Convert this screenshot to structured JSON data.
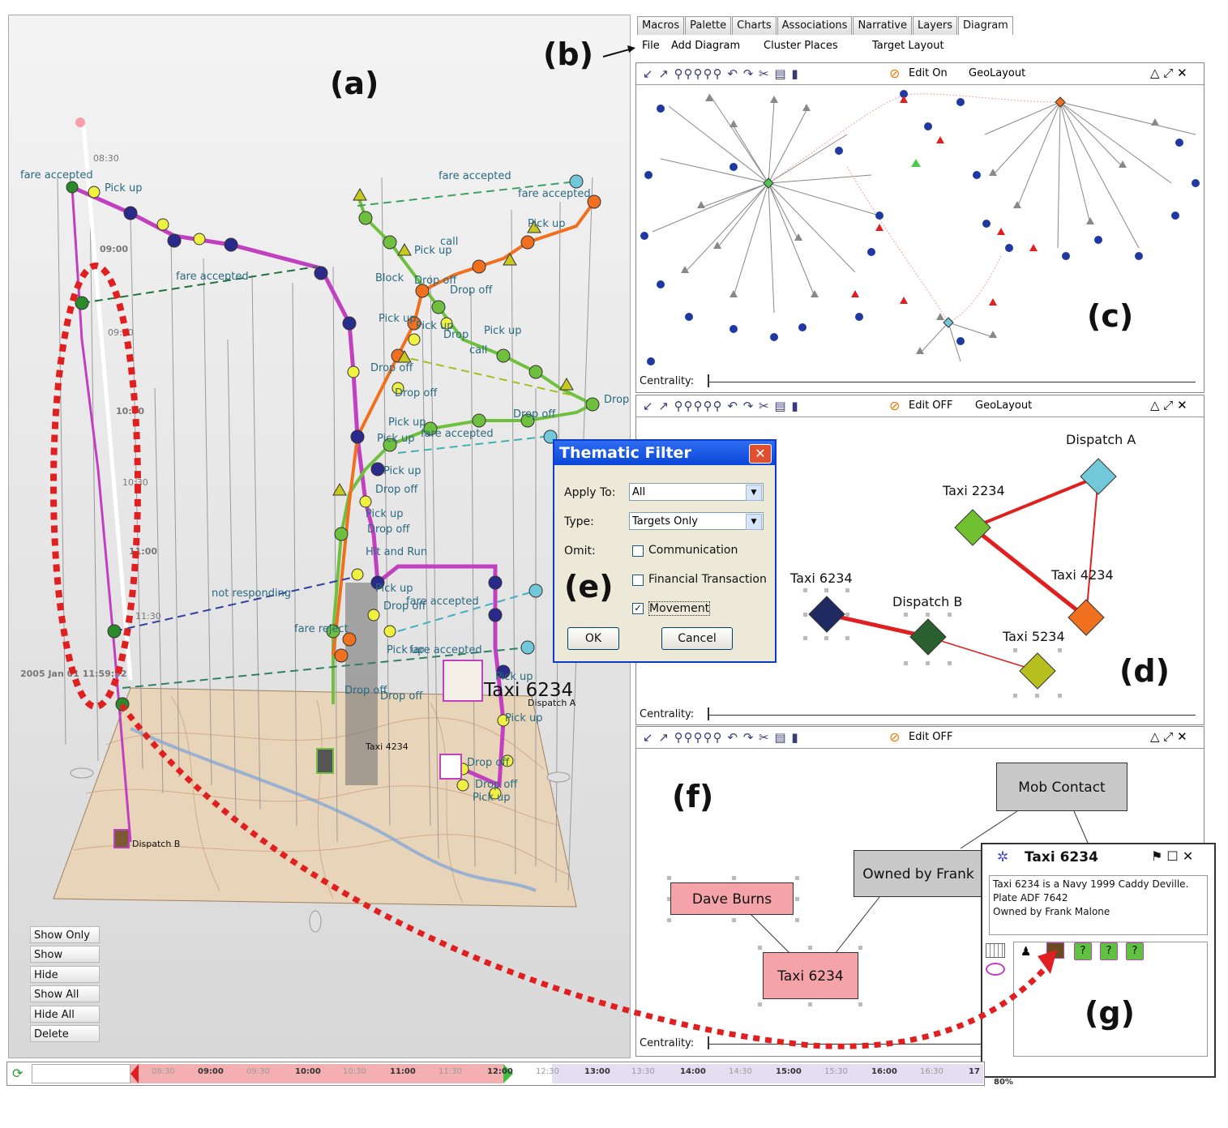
{
  "panel_labels": {
    "a": "(a)",
    "b": "(b)",
    "c": "(c)",
    "d": "(d)",
    "e": "(e)",
    "f": "(f)",
    "g": "(g)"
  },
  "view3d": {
    "time_labels": [
      "08:30",
      "09:00",
      "09:30",
      "10:00",
      "10:30",
      "11:00",
      "11:30"
    ],
    "timestamp": "2005 Jan 01 11:59:52",
    "event_labels": {
      "fare_accepted_tl": "fare accepted",
      "pick_up_tl": "Pick up",
      "fare_accepted_mid": "fare accepted",
      "fare_accepted_tr": "fare accepted",
      "fare_accepted_tr2": "fare accepted",
      "pick_up_tr": "Pick up",
      "call_1": "call",
      "pick_up_1": "Pick up",
      "block": "Block",
      "drop_off_1": "Drop off",
      "drop_off_2": "Drop off",
      "pick_up_2": "Pick up",
      "pick_up_3": "Pick up",
      "drop_1": "Drop",
      "pick_up_4": "Pick up",
      "call_2": "call",
      "drop_off_3": "Drop off",
      "drop_off_4": "Drop off",
      "drop_r": "Drop",
      "pick_up_5": "Pick up",
      "drop_off_5": "Drop off",
      "fare_accepted_5": "fare accepted",
      "pick_up_6": "Pick up",
      "pick_up_7": "Pick up",
      "drop_off_6": "Drop off",
      "pick_up_8": "Pick up",
      "drop_off_7": "Drop off",
      "hit_and_run": "Hit and Run",
      "not_responding": "not responding",
      "pick_up_9": "Pick up",
      "drop_off_8": "Drop off",
      "fare_accepted_6": "fare accepted",
      "fare_reject": "fare reject",
      "pick_up_10": "Pick up",
      "fare_accepted_7": "fare accepted",
      "drop_off_9": "Drop off",
      "drop_off_10": "Drop off",
      "pick_up_11": "Pick up",
      "pick_up_12": "Pick up",
      "drop_off_11": "Drop off",
      "drop_off_12": "Drop off",
      "pick_up_13": "Pick up"
    },
    "taxi_6234_label": "Taxi 6234",
    "dispatch_a_label": "Dispatch A",
    "taxi_4234_label": "Taxi 4234",
    "dispatch_b_label": "Dispatch B",
    "buttons": [
      "Show Only",
      "Show",
      "Hide",
      "Show All",
      "Hide All",
      "Delete"
    ]
  },
  "tabs": [
    "Macros",
    "Palette",
    "Charts",
    "Associations",
    "Narrative",
    "Layers",
    "Diagram"
  ],
  "menu": [
    "File",
    "Add Diagram",
    "Cluster Places",
    "Target Layout"
  ],
  "pane_c": {
    "edit": "Edit On",
    "layout": "GeoLayout",
    "centrality": "Centrality:"
  },
  "pane_d": {
    "edit": "Edit OFF",
    "layout": "GeoLayout",
    "centrality": "Centrality:",
    "nodes": {
      "dispatch_a": "Dispatch A",
      "taxi_2234": "Taxi 2234",
      "taxi_4234": "Taxi 4234",
      "taxi_6234": "Taxi 6234",
      "dispatch_b": "Dispatch B",
      "taxi_5234": "Taxi 5234"
    }
  },
  "pane_f": {
    "edit": "Edit OFF",
    "centrality": "Centrality:",
    "nodes": {
      "mob_contact": "Mob Contact",
      "owned_by": "Owned by Frank",
      "dave_burns": "Dave Burns",
      "taxi_6234": "Taxi 6234"
    }
  },
  "dialog": {
    "title": "Thematic Filter",
    "apply_to_label": "Apply To:",
    "apply_to_value": "All",
    "type_label": "Type:",
    "type_value": "Targets Only",
    "omit_label": "Omit:",
    "options": [
      {
        "label": "Communication",
        "checked": false
      },
      {
        "label": "Financial Transaction",
        "checked": false
      },
      {
        "label": "Movement",
        "checked": true
      }
    ],
    "ok": "OK",
    "cancel": "Cancel"
  },
  "infowin": {
    "title": "Taxi 6234",
    "lines": [
      "Taxi 6234 is a Navy 1999 Caddy Deville.",
      "Plate ADF 7642",
      "Owned by Frank Malone"
    ]
  },
  "timeline": {
    "ticks": [
      "08:30",
      "09:00",
      "09:30",
      "10:00",
      "10:30",
      "11:00",
      "11:30",
      "12:00",
      "12:30",
      "13:00",
      "13:30",
      "14:00",
      "14:30",
      "15:00",
      "15:30",
      "16:00",
      "16:30",
      "17"
    ],
    "zoom": "80%"
  }
}
